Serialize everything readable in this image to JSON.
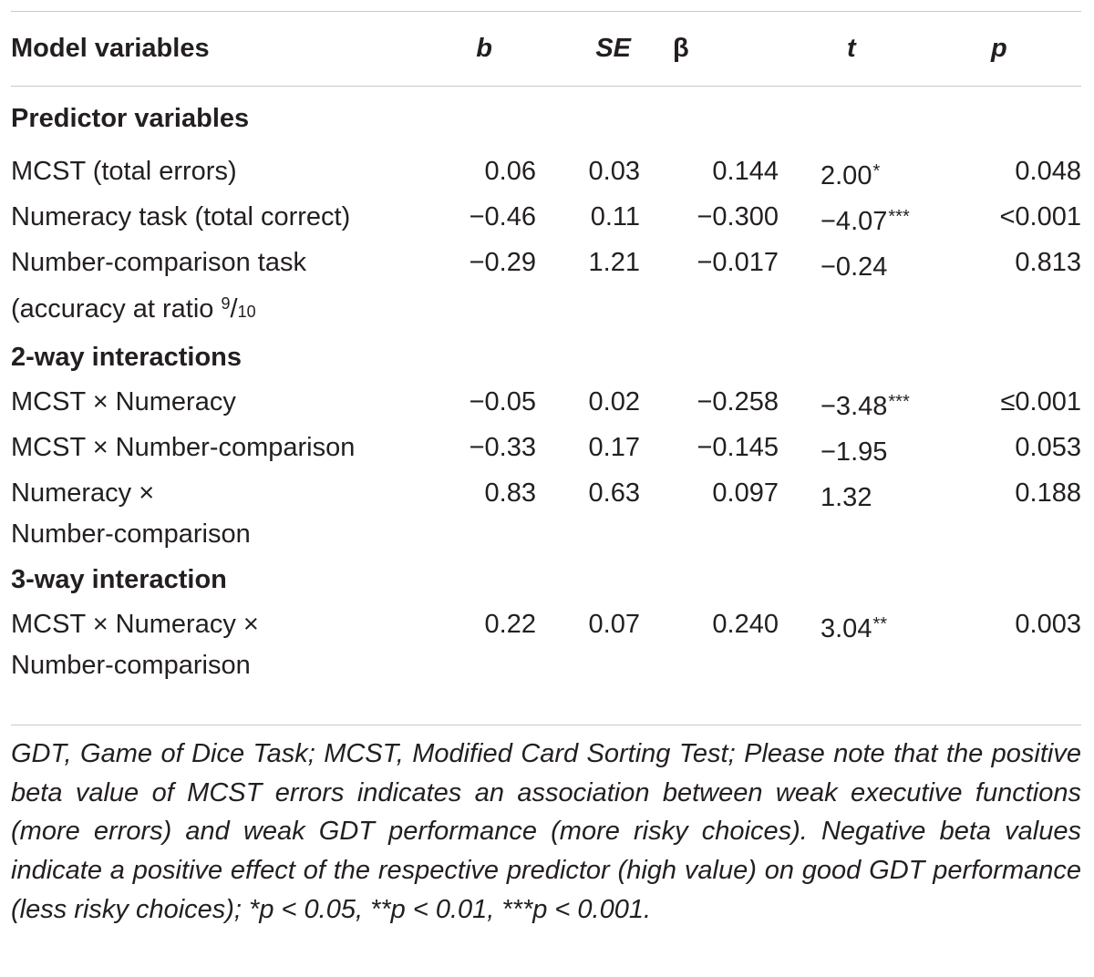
{
  "table": {
    "headers": {
      "model_variables": "Model variables",
      "b": "b",
      "se": "SE",
      "beta": "β",
      "t": "t",
      "p": "p"
    },
    "sections": [
      {
        "title": "Predictor variables",
        "rows": [
          {
            "name": "MCST (total errors)",
            "b": "0.06",
            "se": "0.03",
            "beta": "0.144",
            "t": "2.00",
            "t_stars": "*",
            "p": "0.048"
          },
          {
            "name": "Numeracy task (total correct)",
            "b": "−0.46",
            "se": "0.11",
            "beta": "−0.300",
            "t": "−4.07",
            "t_stars": "***",
            "p": "<0.001"
          },
          {
            "name_line1": "Number-comparison task",
            "name_line2": "(accuracy at ratio ",
            "ratio_num": "9",
            "ratio_den": "10",
            "b": "−0.29",
            "se": "1.21",
            "beta": "−0.017",
            "t": "−0.24",
            "t_stars": "",
            "p": "0.813"
          }
        ]
      },
      {
        "title": "2-way interactions",
        "rows": [
          {
            "name": "MCST × Numeracy",
            "b": "−0.05",
            "se": "0.02",
            "beta": "−0.258",
            "t": "−3.48",
            "t_stars": "***",
            "p": "≤0.001"
          },
          {
            "name": "MCST × Number-comparison",
            "b": "−0.33",
            "se": "0.17",
            "beta": "−0.145",
            "t": "−1.95",
            "t_stars": "",
            "p": "0.053"
          },
          {
            "name_line1": "Numeracy ×",
            "name_line2": "Number-comparison",
            "b": "0.83",
            "se": "0.63",
            "beta": "0.097",
            "t": "1.32",
            "t_stars": "",
            "p": "0.188"
          }
        ]
      },
      {
        "title": "3-way interaction",
        "rows": [
          {
            "name_line1": "MCST × Numeracy ×",
            "name_line2": "Number-comparison",
            "b": "0.22",
            "se": "0.07",
            "beta": "0.240",
            "t": "3.04",
            "t_stars": "**",
            "p": "0.003"
          }
        ]
      }
    ],
    "footnote": "GDT, Game of Dice Task; MCST, Modified Card Sorting Test; Please note that the positive beta value of MCST errors indicates an association between weak executive functions (more errors) and weak GDT performance (more risky choices). Negative beta values indicate a positive effect of the respective predictor (high value) on good GDT performance (less risky choices); *p < 0.05, **p < 0.01, ***p < 0.001."
  }
}
